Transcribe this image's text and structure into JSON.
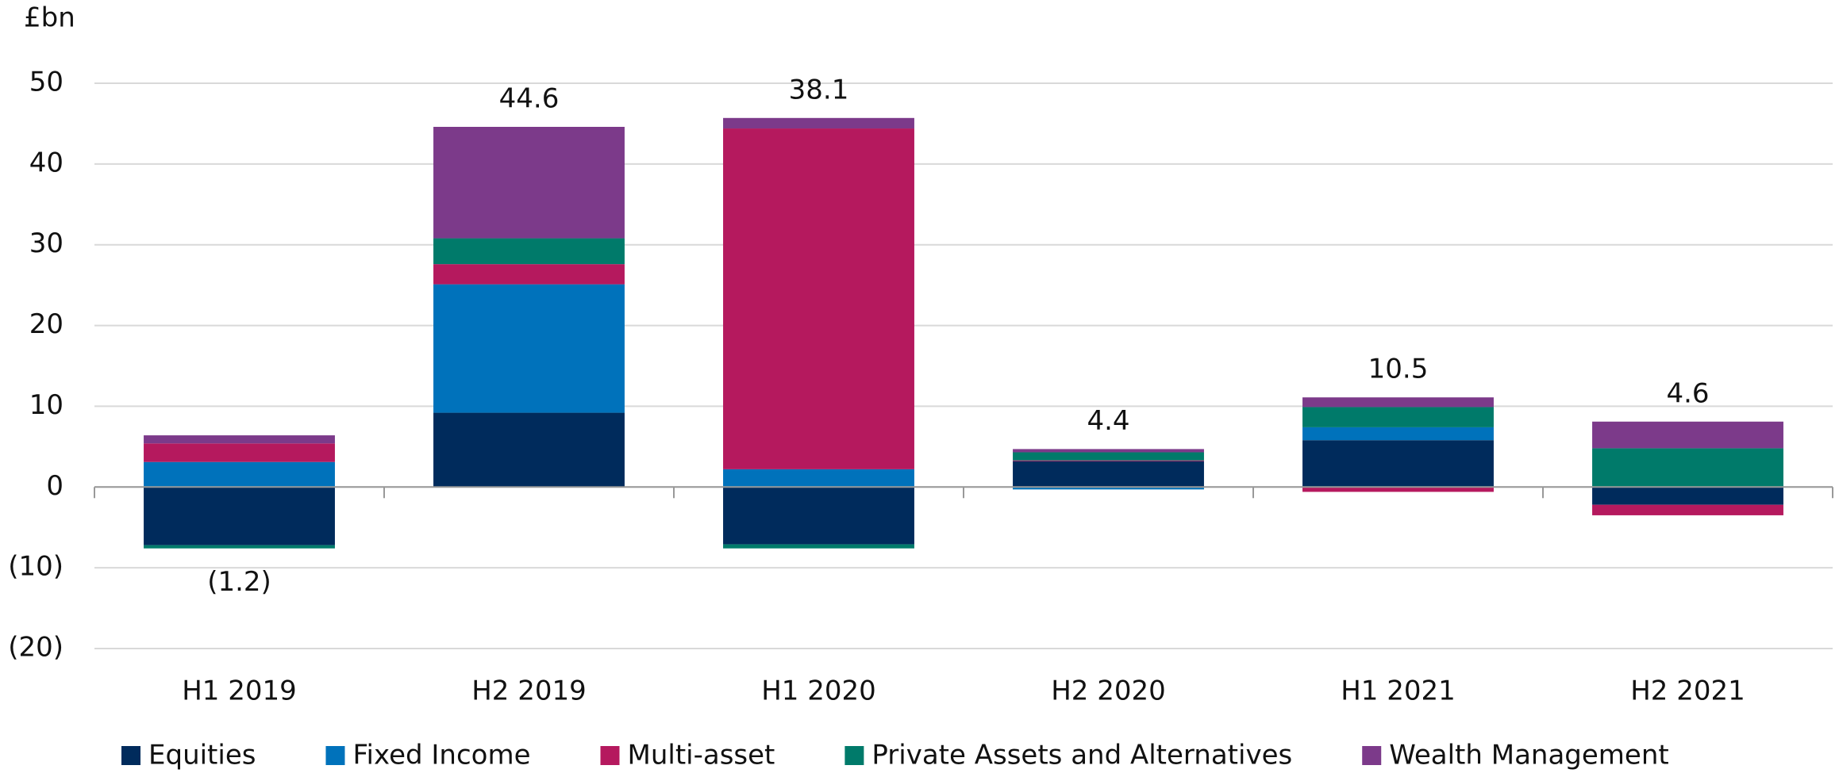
{
  "chart_data": {
    "type": "stacked_bar",
    "y_label": "£bn",
    "categories": [
      "H1 2019",
      "H2 2019",
      "H1 2020",
      "H2 2020",
      "H1 2021",
      "H2 2021"
    ],
    "series": [
      {
        "name": "Equities",
        "color": "#002b5c",
        "values": [
          -7.2,
          9.2,
          -7.1,
          3.2,
          5.8,
          -2.2
        ]
      },
      {
        "name": "Fixed Income",
        "color": "#0072bb",
        "values": [
          3.1,
          15.9,
          2.2,
          -0.3,
          1.6,
          0
        ]
      },
      {
        "name": "Multi-asset",
        "color": "#b5195e",
        "values": [
          2.3,
          2.5,
          42.2,
          0.1,
          -0.6,
          -1.3
        ]
      },
      {
        "name": "Private Assets and Alternatives",
        "color": "#007a6a",
        "values": [
          -0.4,
          3.2,
          -0.5,
          1.0,
          2.5,
          4.8
        ]
      },
      {
        "name": "Wealth Management",
        "color": "#7c3a8a",
        "values": [
          1.0,
          13.8,
          1.3,
          0.4,
          1.2,
          3.3
        ]
      }
    ],
    "totals": [
      -1.2,
      44.6,
      38.1,
      4.4,
      10.5,
      4.6
    ],
    "totals_labels": [
      "(1.2)",
      "44.6",
      "38.1",
      "4.4",
      "10.5",
      "4.6"
    ],
    "ylim": [
      -20,
      50
    ],
    "yticks": [
      {
        "value": -20,
        "label": "(20)"
      },
      {
        "value": -10,
        "label": "(10)"
      },
      0,
      10,
      20,
      30,
      40,
      50
    ],
    "grid": true,
    "legend": "bottom"
  }
}
